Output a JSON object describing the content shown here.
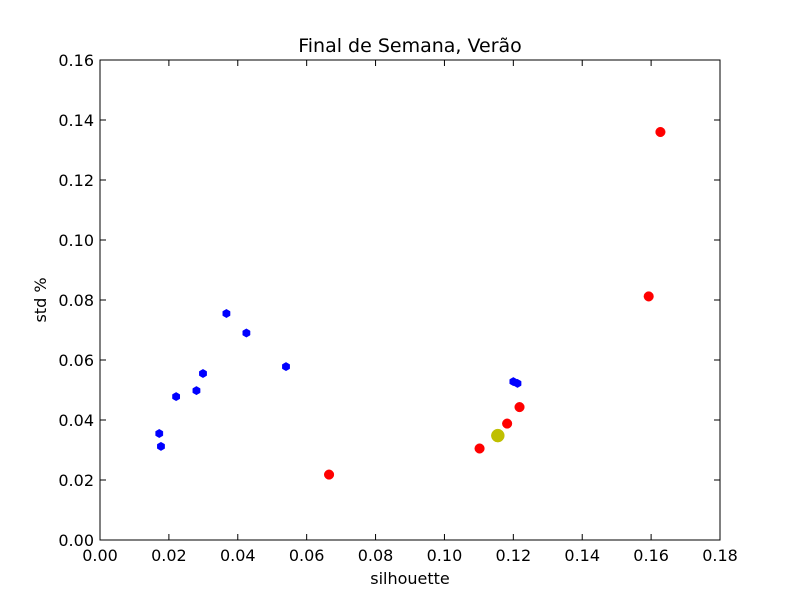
{
  "chart_data": {
    "type": "scatter",
    "title": "Final de Semana, Verão",
    "xlabel": "silhouette",
    "ylabel": "std %",
    "xlim": [
      0.0,
      0.18
    ],
    "ylim": [
      0.0,
      0.16
    ],
    "xticks": [
      "0.00",
      "0.02",
      "0.04",
      "0.06",
      "0.08",
      "0.10",
      "0.12",
      "0.14",
      "0.16",
      "0.18"
    ],
    "yticks": [
      "0.00",
      "0.02",
      "0.04",
      "0.06",
      "0.08",
      "0.10",
      "0.12",
      "0.14",
      "0.16"
    ],
    "grid": false,
    "series": [
      {
        "color": "#0000ff",
        "marker": "hexagon",
        "points": [
          {
            "x": 0.0172,
            "y": 0.0355
          },
          {
            "x": 0.0177,
            "y": 0.0312
          },
          {
            "x": 0.0221,
            "y": 0.0478
          },
          {
            "x": 0.028,
            "y": 0.0498
          },
          {
            "x": 0.0299,
            "y": 0.0555
          },
          {
            "x": 0.0367,
            "y": 0.0755
          },
          {
            "x": 0.0425,
            "y": 0.069
          },
          {
            "x": 0.054,
            "y": 0.0578
          },
          {
            "x": 0.12,
            "y": 0.0528
          },
          {
            "x": 0.1212,
            "y": 0.0522
          }
        ]
      },
      {
        "color": "#ff0000",
        "marker": "circle",
        "points": [
          {
            "x": 0.0665,
            "y": 0.0218
          },
          {
            "x": 0.1102,
            "y": 0.0305
          },
          {
            "x": 0.1182,
            "y": 0.0388
          },
          {
            "x": 0.1218,
            "y": 0.0443
          },
          {
            "x": 0.1593,
            "y": 0.0812
          },
          {
            "x": 0.1627,
            "y": 0.136
          }
        ]
      },
      {
        "color": "#bfbf00",
        "marker": "circle-large",
        "points": [
          {
            "x": 0.1155,
            "y": 0.0348
          }
        ]
      }
    ]
  }
}
